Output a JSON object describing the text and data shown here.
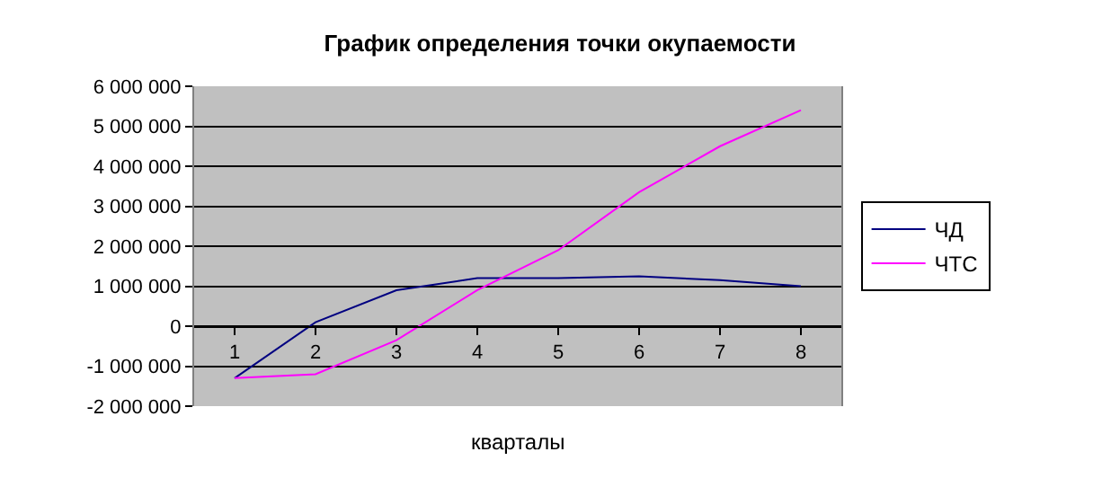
{
  "chart_data": {
    "type": "line",
    "title": "График определения точки окупаемости",
    "xlabel": "кварталы",
    "categories": [
      "1",
      "2",
      "3",
      "4",
      "5",
      "6",
      "7",
      "8"
    ],
    "series": [
      {
        "name": "ЧД",
        "color": "#000080",
        "values": [
          -1300000,
          100000,
          900000,
          1200000,
          1200000,
          1250000,
          1150000,
          1000000
        ]
      },
      {
        "name": "ЧТС",
        "color": "#ff00ff",
        "values": [
          -1300000,
          -1200000,
          -350000,
          900000,
          1900000,
          3350000,
          4500000,
          5400000
        ]
      }
    ],
    "ylim": [
      -2000000,
      6000000
    ],
    "yticks": [
      {
        "value": 6000000,
        "label": "6 000 000"
      },
      {
        "value": 5000000,
        "label": "5 000 000"
      },
      {
        "value": 4000000,
        "label": "4 000 000"
      },
      {
        "value": 3000000,
        "label": "3 000 000"
      },
      {
        "value": 2000000,
        "label": "2 000 000"
      },
      {
        "value": 1000000,
        "label": "1 000 000"
      },
      0,
      {
        "value": -1000000,
        "label": "-1 000 000"
      },
      {
        "value": -2000000,
        "label": "-2 000 000"
      }
    ],
    "grid": "y",
    "legend": "right",
    "marker": "none",
    "line_style": "solid"
  }
}
